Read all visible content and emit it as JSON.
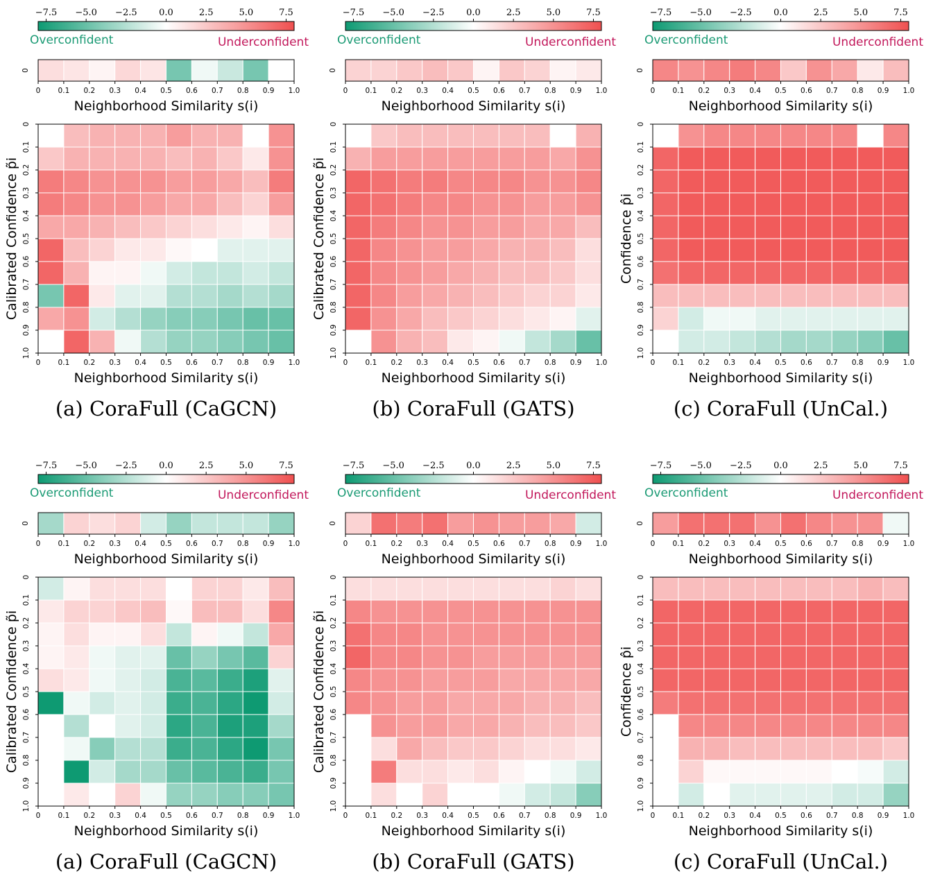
{
  "colors": {
    "neg": "#0e9a72",
    "mid": "#ffffff",
    "pos": "#f05050"
  },
  "color_range": [
    -8,
    8
  ],
  "colorbar_ticks": [
    "−7.5",
    "−5.0",
    "−2.5",
    "0.0",
    "2.5",
    "5.0",
    "7.5"
  ],
  "colorbar_values": [
    -7.5,
    -5.0,
    -2.5,
    0.0,
    2.5,
    5.0,
    7.5
  ],
  "over_label": "Overconfident",
  "under_label": "Underconfident",
  "bin_ticks": [
    "0",
    "0.1",
    "0.2",
    "0.3",
    "0.4",
    "0.5",
    "0.6",
    "0.7",
    "0.8",
    "0.9",
    "1.0"
  ],
  "strip_ytick": "0",
  "strip_xlabel": "Neighborhood Similarity s(i)",
  "chart_data": [
    {
      "type": "heatmap",
      "caption": "(a) CoraFull (CaGCN)",
      "xlabel": "Neighborhood Similarity s(i)",
      "ylabel": "Calibrated Confidence p̃i",
      "strip": [
        1.5,
        1.2,
        0.5,
        1.8,
        1.2,
        -4.5,
        -0.5,
        -1.8,
        -4.5,
        0.0
      ],
      "grid": [
        [
          0.0,
          3.0,
          3.5,
          3.5,
          3.5,
          4.5,
          3.5,
          3.5,
          0.0,
          5.0
        ],
        [
          2.5,
          3.5,
          3.5,
          3.5,
          3.5,
          3.0,
          3.5,
          2.5,
          1.0,
          5.0
        ],
        [
          6.0,
          5.5,
          5.0,
          5.0,
          5.0,
          4.5,
          4.5,
          4.0,
          3.0,
          6.0
        ],
        [
          6.0,
          5.5,
          5.0,
          5.0,
          4.5,
          4.0,
          4.0,
          3.0,
          2.0,
          4.5
        ],
        [
          4.0,
          4.0,
          3.5,
          3.0,
          2.5,
          2.0,
          1.5,
          1.0,
          0.5,
          1.5
        ],
        [
          7.0,
          3.0,
          2.0,
          1.0,
          1.0,
          0.3,
          0.0,
          -1.0,
          -1.0,
          -1.0
        ],
        [
          7.0,
          3.5,
          0.5,
          0.5,
          -0.5,
          -1.5,
          -2.0,
          -2.0,
          -1.5,
          -2.0
        ],
        [
          -4.5,
          7.0,
          1.0,
          -1.0,
          -1.0,
          -2.5,
          -2.5,
          -3.0,
          -2.5,
          -3.0
        ],
        [
          4.0,
          5.0,
          -1.5,
          -2.5,
          -3.5,
          -4.0,
          -4.0,
          -4.5,
          -5.0,
          -5.0
        ],
        [
          0.0,
          7.0,
          3.5,
          -0.5,
          -2.5,
          -3.5,
          -3.5,
          -4.0,
          -4.5,
          -5.0
        ]
      ]
    },
    {
      "type": "heatmap",
      "caption": "(b) CoraFull (GATS)",
      "xlabel": "Neighborhood Similarity s(i)",
      "ylabel": "Calibrated Confidence p̃i",
      "strip": [
        2.0,
        2.0,
        2.5,
        3.0,
        2.5,
        0.5,
        2.5,
        2.0,
        0.5,
        1.0
      ],
      "grid": [
        [
          0.0,
          2.5,
          3.0,
          3.0,
          3.0,
          3.0,
          3.0,
          3.0,
          0.0,
          3.5
        ],
        [
          3.5,
          4.5,
          4.5,
          4.5,
          4.5,
          4.5,
          4.5,
          4.5,
          4.0,
          5.0
        ],
        [
          7.0,
          6.5,
          6.0,
          6.0,
          5.5,
          5.5,
          5.5,
          5.0,
          5.0,
          5.5
        ],
        [
          7.0,
          6.5,
          6.0,
          5.5,
          5.5,
          5.0,
          5.0,
          4.5,
          4.5,
          5.0
        ],
        [
          7.0,
          6.0,
          5.5,
          5.0,
          5.0,
          4.5,
          4.5,
          4.0,
          4.0,
          3.0
        ],
        [
          7.0,
          5.5,
          5.0,
          4.5,
          4.5,
          4.0,
          3.5,
          3.5,
          3.0,
          1.5
        ],
        [
          7.0,
          5.5,
          5.0,
          4.5,
          4.0,
          3.5,
          3.0,
          3.0,
          2.5,
          1.5
        ],
        [
          7.0,
          5.5,
          4.5,
          4.0,
          3.5,
          3.0,
          2.5,
          2.0,
          2.0,
          1.0
        ],
        [
          7.0,
          5.0,
          4.0,
          3.0,
          2.5,
          2.0,
          1.5,
          1.0,
          0.5,
          -1.0
        ],
        [
          0.0,
          5.0,
          3.5,
          3.0,
          1.0,
          0.5,
          -0.5,
          -2.0,
          -3.0,
          -5.0
        ]
      ]
    },
    {
      "type": "heatmap",
      "caption": "(c) CoraFull (UnCal.)",
      "xlabel": "Neighborhood Similarity s(i)",
      "ylabel": "Confidence p̂i",
      "strip": [
        5.5,
        5.0,
        5.5,
        6.0,
        5.5,
        2.5,
        5.0,
        4.0,
        1.0,
        3.0
      ],
      "grid": [
        [
          0.0,
          5.0,
          5.5,
          5.5,
          5.5,
          5.5,
          5.5,
          5.5,
          0.0,
          5.5
        ],
        [
          7.0,
          7.5,
          7.5,
          7.5,
          7.5,
          7.5,
          7.5,
          7.5,
          7.5,
          7.5
        ],
        [
          7.0,
          7.5,
          7.5,
          7.5,
          7.5,
          7.5,
          7.5,
          7.5,
          7.5,
          7.5
        ],
        [
          7.0,
          7.5,
          7.5,
          7.5,
          7.5,
          7.5,
          7.5,
          7.5,
          7.5,
          7.5
        ],
        [
          7.0,
          7.5,
          7.5,
          7.5,
          7.5,
          7.5,
          7.5,
          7.5,
          7.5,
          7.5
        ],
        [
          7.0,
          7.5,
          7.5,
          7.5,
          7.5,
          7.5,
          7.5,
          7.5,
          7.5,
          7.5
        ],
        [
          6.5,
          7.0,
          7.0,
          7.0,
          7.0,
          7.0,
          7.0,
          7.0,
          7.0,
          7.0
        ],
        [
          3.0,
          3.0,
          3.0,
          3.0,
          3.0,
          3.0,
          3.0,
          3.0,
          3.0,
          3.0
        ],
        [
          2.0,
          -1.5,
          -0.5,
          -0.5,
          -1.0,
          -1.0,
          -1.0,
          -1.0,
          -1.0,
          -1.0
        ],
        [
          0.0,
          -1.5,
          -1.5,
          -2.0,
          -2.5,
          -3.0,
          -3.0,
          -3.5,
          -4.0,
          -5.0
        ]
      ]
    },
    {
      "type": "heatmap",
      "caption": "(a) CoraFull (CaGCN)",
      "xlabel": "Neighborhood Similarity s(i)",
      "ylabel": "Calibrated Confidence p̃i",
      "strip": [
        -3.0,
        2.0,
        1.5,
        2.0,
        -1.5,
        -3.5,
        -2.0,
        -2.0,
        -2.0,
        -3.5
      ],
      "grid": [
        [
          -1.5,
          0.5,
          1.5,
          1.5,
          1.5,
          0.0,
          2.0,
          2.0,
          1.0,
          3.0
        ],
        [
          1.0,
          2.0,
          2.0,
          2.5,
          3.0,
          0.3,
          3.0,
          3.0,
          1.5,
          5.5
        ],
        [
          0.5,
          1.5,
          0.5,
          0.5,
          1.5,
          -2.0,
          0.5,
          -0.5,
          -2.0,
          4.0
        ],
        [
          0.5,
          1.0,
          -0.5,
          -1.0,
          -1.0,
          -5.0,
          -3.5,
          -4.5,
          -5.5,
          2.0
        ],
        [
          1.5,
          1.0,
          -0.5,
          -1.0,
          -1.5,
          -6.0,
          -5.5,
          -6.5,
          -7.5,
          -1.0
        ],
        [
          -8.0,
          -0.5,
          -1.5,
          -1.0,
          -1.5,
          -6.5,
          -6.0,
          -7.0,
          -8.0,
          -1.5
        ],
        [
          0.0,
          -2.5,
          0.0,
          -1.0,
          -1.5,
          -7.0,
          -6.0,
          -7.5,
          -7.5,
          -3.0
        ],
        [
          0.0,
          -0.5,
          -4.0,
          -2.5,
          -2.5,
          -6.5,
          -6.0,
          -7.0,
          -8.0,
          -4.5
        ],
        [
          0.0,
          -8.0,
          -1.5,
          -3.0,
          -3.0,
          -5.0,
          -5.5,
          -6.0,
          -6.5,
          -4.5
        ],
        [
          0.0,
          1.0,
          0.0,
          2.0,
          -0.5,
          -3.5,
          -3.5,
          -4.0,
          -4.0,
          -4.5
        ]
      ]
    },
    {
      "type": "heatmap",
      "caption": "(b) CoraFull (GATS)",
      "xlabel": "Neighborhood Similarity s(i)",
      "ylabel": "Calibrated Confidence p̃i",
      "strip": [
        2.0,
        6.5,
        6.0,
        6.5,
        4.5,
        5.0,
        4.5,
        4.5,
        4.0,
        -1.5
      ],
      "grid": [
        [
          1.5,
          1.5,
          1.5,
          1.5,
          1.5,
          1.5,
          1.5,
          1.5,
          2.0,
          1.5
        ],
        [
          5.5,
          5.0,
          5.0,
          5.0,
          5.0,
          5.0,
          5.0,
          5.0,
          5.0,
          5.0
        ],
        [
          6.5,
          5.5,
          5.5,
          5.0,
          5.0,
          5.0,
          5.0,
          5.0,
          5.0,
          5.0
        ],
        [
          7.0,
          5.5,
          5.5,
          5.0,
          5.0,
          4.5,
          4.5,
          4.5,
          4.5,
          4.5
        ],
        [
          5.5,
          5.0,
          5.0,
          4.5,
          4.5,
          4.5,
          4.0,
          4.0,
          4.0,
          4.0
        ],
        [
          5.5,
          5.0,
          4.5,
          4.5,
          4.0,
          4.0,
          4.0,
          3.5,
          3.5,
          3.0
        ],
        [
          0.0,
          5.0,
          4.5,
          4.5,
          4.0,
          4.0,
          3.5,
          3.0,
          3.0,
          2.5
        ],
        [
          0.0,
          1.5,
          4.0,
          3.0,
          2.5,
          2.5,
          2.0,
          1.5,
          1.5,
          1.0
        ],
        [
          0.0,
          6.0,
          1.5,
          1.5,
          1.0,
          1.5,
          0.5,
          0.0,
          -0.5,
          -1.5
        ],
        [
          0.0,
          1.5,
          0.0,
          2.0,
          0.0,
          0.0,
          -0.5,
          -1.5,
          -2.0,
          -4.0
        ]
      ]
    },
    {
      "type": "heatmap",
      "caption": "(c) CoraFull (UnCal.)",
      "xlabel": "Neighborhood Similarity s(i)",
      "ylabel": "Confidence p̂i",
      "strip": [
        4.5,
        6.5,
        6.5,
        6.5,
        5.0,
        6.5,
        5.5,
        5.0,
        5.0,
        -0.5
      ],
      "grid": [
        [
          3.0,
          3.0,
          3.0,
          3.0,
          3.0,
          3.0,
          3.0,
          3.0,
          3.5,
          3.0
        ],
        [
          7.0,
          7.0,
          7.0,
          7.0,
          7.0,
          7.0,
          7.0,
          7.0,
          7.0,
          7.0
        ],
        [
          7.0,
          7.0,
          7.0,
          7.0,
          7.0,
          7.0,
          7.0,
          7.0,
          7.0,
          7.0
        ],
        [
          7.0,
          7.0,
          7.0,
          7.0,
          7.0,
          7.0,
          7.0,
          7.0,
          7.0,
          7.0
        ],
        [
          7.0,
          7.0,
          7.0,
          7.0,
          7.0,
          7.0,
          7.0,
          7.0,
          7.0,
          7.0
        ],
        [
          6.0,
          6.5,
          6.5,
          6.5,
          6.5,
          6.5,
          6.5,
          6.5,
          6.5,
          6.5
        ],
        [
          0.0,
          5.5,
          5.5,
          5.5,
          5.5,
          5.5,
          5.5,
          5.5,
          5.5,
          5.5
        ],
        [
          0.0,
          3.5,
          3.5,
          3.0,
          3.0,
          3.0,
          3.0,
          3.0,
          3.0,
          2.5
        ],
        [
          0.0,
          2.0,
          0.3,
          0.3,
          0.3,
          0.3,
          0.3,
          0.0,
          -0.3,
          -1.5
        ],
        [
          0.0,
          -1.5,
          0.0,
          -1.0,
          -1.0,
          -1.0,
          -1.0,
          -1.5,
          -1.5,
          -3.5
        ]
      ]
    }
  ]
}
